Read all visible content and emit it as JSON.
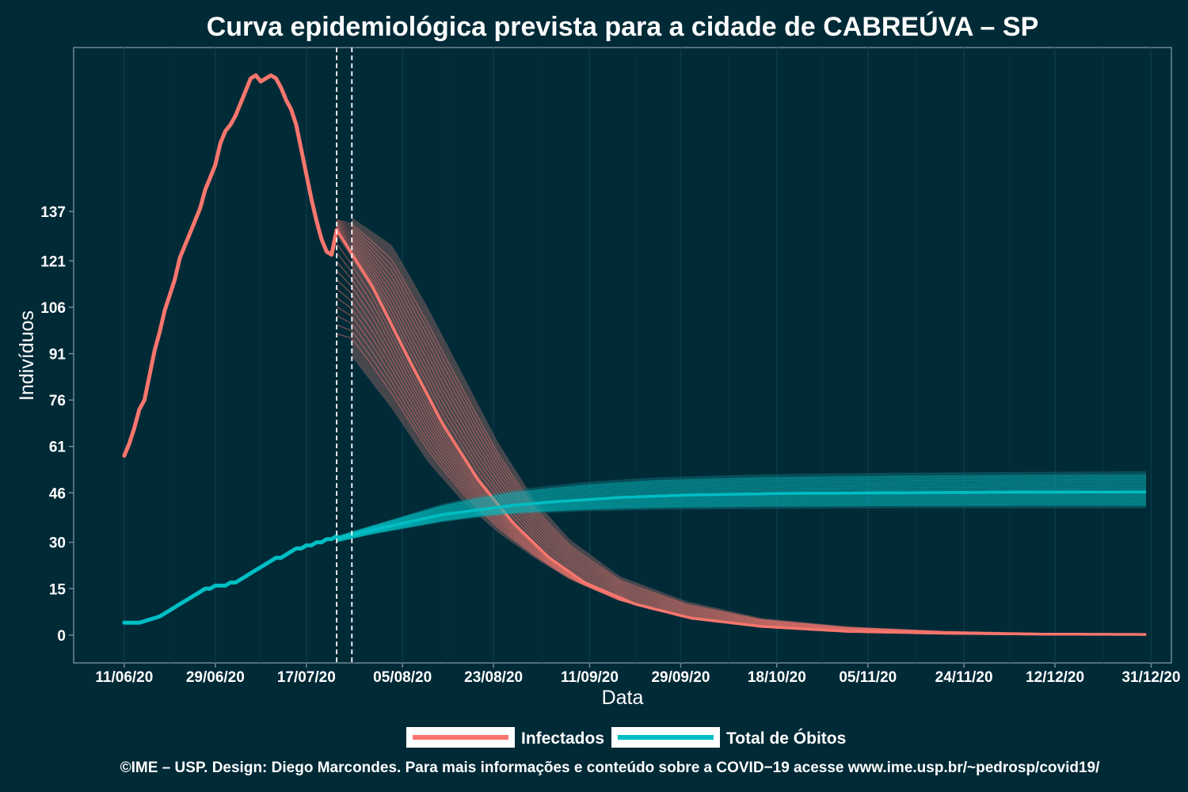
{
  "chart_data": {
    "type": "line",
    "title": "Curva epidemiológica prevista para a cidade de CABREÚVA – SP",
    "xlabel": "Data",
    "ylabel": "Indivíduos",
    "x_ticks": [
      "11/06/20",
      "29/06/20",
      "17/07/20",
      "05/08/20",
      "23/08/20",
      "11/09/20",
      "29/09/20",
      "18/10/20",
      "05/11/20",
      "24/11/20",
      "12/12/20",
      "31/12/20"
    ],
    "y_ticks": [
      0,
      15,
      30,
      46,
      61,
      76,
      91,
      106,
      121,
      137
    ],
    "xlim": [
      "2020-06-01",
      "2021-01-04"
    ],
    "ylim": [
      -9,
      190
    ],
    "grid": true,
    "vlines": [
      "2020-07-23",
      "2020-07-26"
    ],
    "legend_position": "bottom",
    "series": [
      {
        "name": "Infectados",
        "color": "#f8766d",
        "observed": [
          [
            "2020-06-11",
            58
          ],
          [
            "2020-06-12",
            62
          ],
          [
            "2020-06-13",
            67
          ],
          [
            "2020-06-14",
            73
          ],
          [
            "2020-06-15",
            76
          ],
          [
            "2020-06-16",
            84
          ],
          [
            "2020-06-17",
            92
          ],
          [
            "2020-06-18",
            98
          ],
          [
            "2020-06-19",
            105
          ],
          [
            "2020-06-20",
            110
          ],
          [
            "2020-06-21",
            115
          ],
          [
            "2020-06-22",
            122
          ],
          [
            "2020-06-23",
            126
          ],
          [
            "2020-06-24",
            130
          ],
          [
            "2020-06-25",
            134
          ],
          [
            "2020-06-26",
            138
          ],
          [
            "2020-06-27",
            144
          ],
          [
            "2020-06-28",
            148
          ],
          [
            "2020-06-29",
            152
          ],
          [
            "2020-06-30",
            159
          ],
          [
            "2020-07-01",
            163
          ],
          [
            "2020-07-02",
            165
          ],
          [
            "2020-07-03",
            168
          ],
          [
            "2020-07-04",
            172
          ],
          [
            "2020-07-05",
            176
          ],
          [
            "2020-07-06",
            180
          ],
          [
            "2020-07-07",
            181
          ],
          [
            "2020-07-08",
            179
          ],
          [
            "2020-07-09",
            180
          ],
          [
            "2020-07-10",
            181
          ],
          [
            "2020-07-11",
            180
          ],
          [
            "2020-07-12",
            177
          ],
          [
            "2020-07-13",
            173
          ],
          [
            "2020-07-14",
            170
          ],
          [
            "2020-07-15",
            165
          ],
          [
            "2020-07-16",
            157
          ],
          [
            "2020-07-17",
            149
          ],
          [
            "2020-07-18",
            141
          ],
          [
            "2020-07-19",
            134
          ],
          [
            "2020-07-20",
            128
          ],
          [
            "2020-07-21",
            124
          ],
          [
            "2020-07-22",
            123
          ],
          [
            "2020-07-23",
            131
          ]
        ],
        "forecast_median": [
          [
            "2020-07-23",
            131
          ],
          [
            "2020-07-30",
            113
          ],
          [
            "2020-08-06",
            90
          ],
          [
            "2020-08-13",
            68
          ],
          [
            "2020-08-20",
            50
          ],
          [
            "2020-08-27",
            36
          ],
          [
            "2020-09-03",
            25
          ],
          [
            "2020-09-10",
            17
          ],
          [
            "2020-09-20",
            10
          ],
          [
            "2020-10-01",
            5.5
          ],
          [
            "2020-10-15",
            2.8
          ],
          [
            "2020-11-01",
            1.2
          ],
          [
            "2020-11-20",
            0.6
          ],
          [
            "2020-12-10",
            0.3
          ],
          [
            "2020-12-30",
            0.2
          ]
        ],
        "forecast_band_upper": [
          [
            "2020-07-26",
            135
          ],
          [
            "2020-08-03",
            126
          ],
          [
            "2020-08-10",
            106
          ],
          [
            "2020-08-17",
            84
          ],
          [
            "2020-08-24",
            62
          ],
          [
            "2020-08-31",
            44
          ],
          [
            "2020-09-07",
            31
          ],
          [
            "2020-09-17",
            19
          ],
          [
            "2020-09-30",
            11
          ],
          [
            "2020-10-15",
            5.5
          ],
          [
            "2020-11-01",
            2.8
          ],
          [
            "2020-11-20",
            1.3
          ],
          [
            "2020-12-10",
            0.6
          ],
          [
            "2020-12-30",
            0.3
          ]
        ],
        "forecast_band_lower": [
          [
            "2020-07-26",
            90
          ],
          [
            "2020-08-03",
            73
          ],
          [
            "2020-08-10",
            56
          ],
          [
            "2020-08-17",
            43
          ],
          [
            "2020-08-24",
            33
          ],
          [
            "2020-08-31",
            25
          ],
          [
            "2020-09-07",
            18
          ],
          [
            "2020-09-17",
            11
          ],
          [
            "2020-09-30",
            6
          ],
          [
            "2020-10-15",
            3
          ],
          [
            "2020-11-01",
            1.3
          ],
          [
            "2020-11-20",
            0.6
          ],
          [
            "2020-12-10",
            0.2
          ],
          [
            "2020-12-30",
            0.1
          ]
        ]
      },
      {
        "name": "Total de Óbitos",
        "color": "#00bfc4",
        "observed": [
          [
            "2020-06-11",
            4
          ],
          [
            "2020-06-12",
            4
          ],
          [
            "2020-06-13",
            4
          ],
          [
            "2020-06-14",
            4
          ],
          [
            "2020-06-15",
            4.5
          ],
          [
            "2020-06-16",
            5
          ],
          [
            "2020-06-17",
            5.5
          ],
          [
            "2020-06-18",
            6
          ],
          [
            "2020-06-19",
            7
          ],
          [
            "2020-06-20",
            8
          ],
          [
            "2020-06-21",
            9
          ],
          [
            "2020-06-22",
            10
          ],
          [
            "2020-06-23",
            11
          ],
          [
            "2020-06-24",
            12
          ],
          [
            "2020-06-25",
            13
          ],
          [
            "2020-06-26",
            14
          ],
          [
            "2020-06-27",
            15
          ],
          [
            "2020-06-28",
            15
          ],
          [
            "2020-06-29",
            16
          ],
          [
            "2020-06-30",
            16
          ],
          [
            "2020-07-01",
            16
          ],
          [
            "2020-07-02",
            17
          ],
          [
            "2020-07-03",
            17
          ],
          [
            "2020-07-04",
            18
          ],
          [
            "2020-07-05",
            19
          ],
          [
            "2020-07-06",
            20
          ],
          [
            "2020-07-07",
            21
          ],
          [
            "2020-07-08",
            22
          ],
          [
            "2020-07-09",
            23
          ],
          [
            "2020-07-10",
            24
          ],
          [
            "2020-07-11",
            25
          ],
          [
            "2020-07-12",
            25
          ],
          [
            "2020-07-13",
            26
          ],
          [
            "2020-07-14",
            27
          ],
          [
            "2020-07-15",
            28
          ],
          [
            "2020-07-16",
            28
          ],
          [
            "2020-07-17",
            29
          ],
          [
            "2020-07-18",
            29
          ],
          [
            "2020-07-19",
            30
          ],
          [
            "2020-07-20",
            30
          ],
          [
            "2020-07-21",
            31
          ],
          [
            "2020-07-22",
            31
          ],
          [
            "2020-07-23",
            32
          ]
        ],
        "forecast_median": [
          [
            "2020-07-23",
            31
          ],
          [
            "2020-07-30",
            34
          ],
          [
            "2020-08-06",
            36.5
          ],
          [
            "2020-08-13",
            39
          ],
          [
            "2020-08-20",
            40.5
          ],
          [
            "2020-08-27",
            42
          ],
          [
            "2020-09-03",
            43
          ],
          [
            "2020-09-17",
            44.5
          ],
          [
            "2020-10-01",
            45.3
          ],
          [
            "2020-10-20",
            45.8
          ],
          [
            "2020-11-10",
            46
          ],
          [
            "2020-12-01",
            46.2
          ],
          [
            "2020-12-30",
            46.3
          ]
        ],
        "forecast_band_upper": [
          [
            "2020-07-23",
            32
          ],
          [
            "2020-07-30",
            35.5
          ],
          [
            "2020-08-06",
            39
          ],
          [
            "2020-08-13",
            42.5
          ],
          [
            "2020-08-20",
            45
          ],
          [
            "2020-08-27",
            47
          ],
          [
            "2020-09-10",
            49.5
          ],
          [
            "2020-09-24",
            51
          ],
          [
            "2020-10-15",
            52
          ],
          [
            "2020-11-10",
            52.5
          ],
          [
            "2020-12-30",
            53
          ]
        ],
        "forecast_band_lower": [
          [
            "2020-07-23",
            30
          ],
          [
            "2020-07-30",
            32.5
          ],
          [
            "2020-08-06",
            34.5
          ],
          [
            "2020-08-13",
            36.5
          ],
          [
            "2020-08-20",
            38
          ],
          [
            "2020-08-27",
            39
          ],
          [
            "2020-09-10",
            40
          ],
          [
            "2020-09-24",
            40.5
          ],
          [
            "2020-10-15",
            40.8
          ],
          [
            "2020-11-10",
            41
          ],
          [
            "2020-12-30",
            41
          ]
        ]
      }
    ]
  },
  "caption": "©IME – USP. Design: Diego Marcondes. Para mais informações e conteúdo sobre a COVID−19 acesse www.ime.usp.br/~pedrosp/covid19/"
}
